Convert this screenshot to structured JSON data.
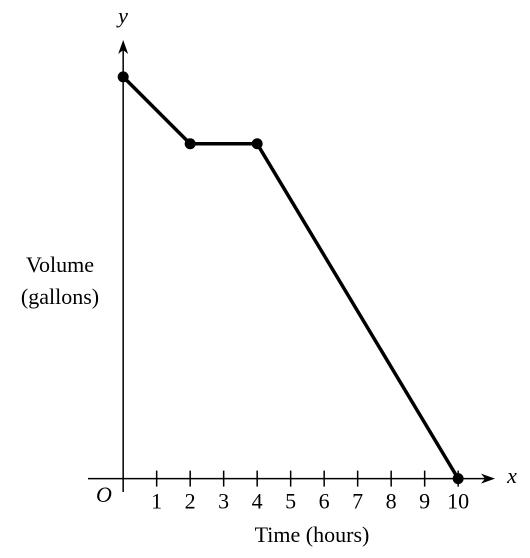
{
  "chart_data": {
    "type": "line",
    "x": [
      0,
      2,
      4,
      10
    ],
    "values": [
      6,
      5,
      5,
      0
    ],
    "color": "#000000",
    "xlim": [
      -1.05,
      11.1
    ],
    "ylim": [
      -0.2,
      6.55
    ],
    "xticks": [
      1,
      2,
      3,
      4,
      5,
      6,
      7,
      8,
      9,
      10
    ],
    "xlabel": "Time (hours)",
    "ylabel": [
      "Volume",
      "(gallons)"
    ],
    "x_axis_name": "x",
    "y_axis_name": "y",
    "origin_label": "O"
  }
}
